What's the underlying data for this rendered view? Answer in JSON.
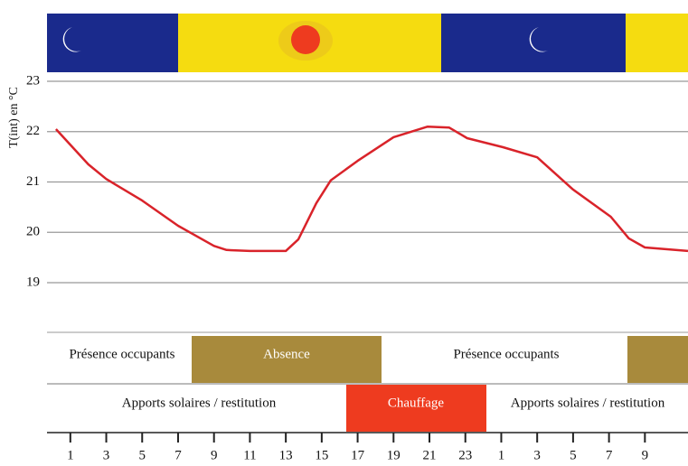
{
  "chart_data": {
    "type": "line",
    "y_label": "T(int) en °C",
    "x": [
      0.2,
      2,
      3,
      5,
      7,
      9,
      9.7,
      11,
      13,
      13.7,
      14.7,
      15.5,
      17,
      19,
      20.9,
      22.1,
      23.1,
      25.1,
      27,
      29,
      31.1,
      32.1,
      33,
      35.4
    ],
    "values": [
      22.05,
      21.35,
      21.06,
      20.63,
      20.13,
      19.73,
      19.65,
      19.63,
      19.63,
      19.86,
      20.58,
      21.03,
      21.42,
      21.89,
      22.1,
      22.08,
      21.87,
      21.69,
      21.49,
      20.85,
      20.31,
      19.88,
      19.7,
      19.63
    ],
    "color": "#d9232a",
    "xlim": [
      -0.3,
      35.4
    ],
    "ylim": [
      19,
      23
    ],
    "yticks": [
      19,
      20,
      21,
      22,
      23
    ],
    "xticks": [
      1,
      3,
      5,
      7,
      9,
      11,
      13,
      15,
      17,
      19,
      21,
      23,
      {
        "value": 25,
        "label": "1"
      },
      {
        "value": 27,
        "label": "3"
      },
      {
        "value": 29,
        "label": "5"
      },
      {
        "value": 31,
        "label": "7"
      },
      {
        "value": 33,
        "label": "9"
      }
    ],
    "grid": true,
    "occupancy": [
      "Présence occupants",
      "Absence",
      "Présence occupants"
    ],
    "heat_sources": [
      "Apports solaires / restitution",
      "Chauffage",
      "Apports solaires / restitution"
    ]
  }
}
